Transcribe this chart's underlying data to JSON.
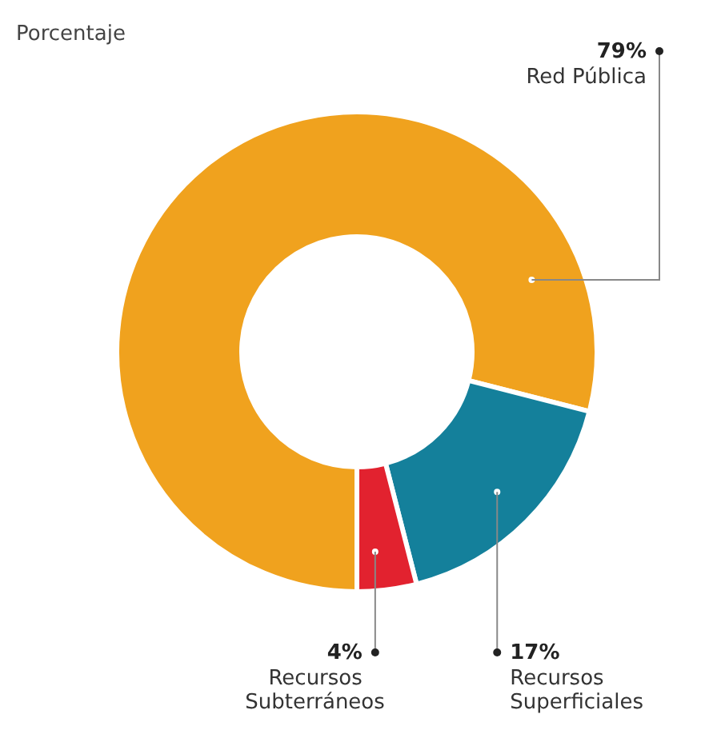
{
  "chart_data": {
    "type": "donut",
    "subtitle": "Porcentaje",
    "categories": [
      "Red Pública",
      "Recursos Superficiales",
      "Recursos Subterráneos"
    ],
    "values": [
      79,
      17,
      4
    ],
    "value_labels": [
      "79%",
      "17%",
      "4%"
    ],
    "colors": [
      "#f0a21e",
      "#14809b",
      "#e2222f"
    ]
  }
}
